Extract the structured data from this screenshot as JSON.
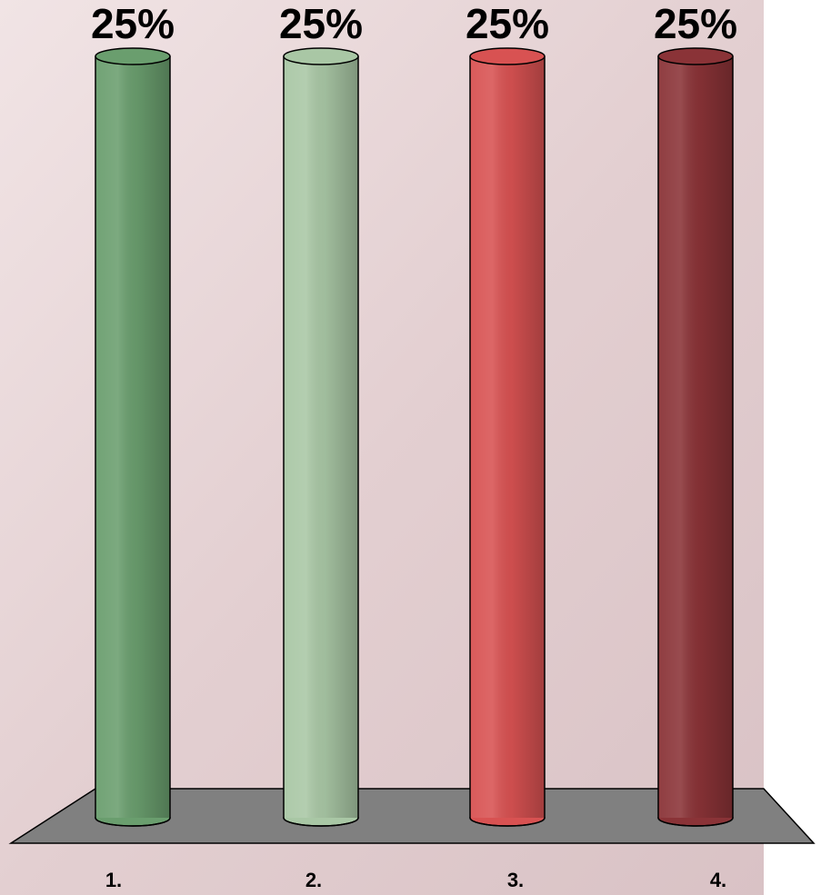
{
  "chart_data": {
    "type": "bar",
    "categories": [
      "1.",
      "2.",
      "3.",
      "4."
    ],
    "values": [
      25,
      25,
      25,
      25
    ],
    "value_labels": [
      "25%",
      "25%",
      "25%",
      "25%"
    ],
    "colors": [
      "#6a9e6e",
      "#a9c7a5",
      "#d85252",
      "#8a3337"
    ]
  }
}
